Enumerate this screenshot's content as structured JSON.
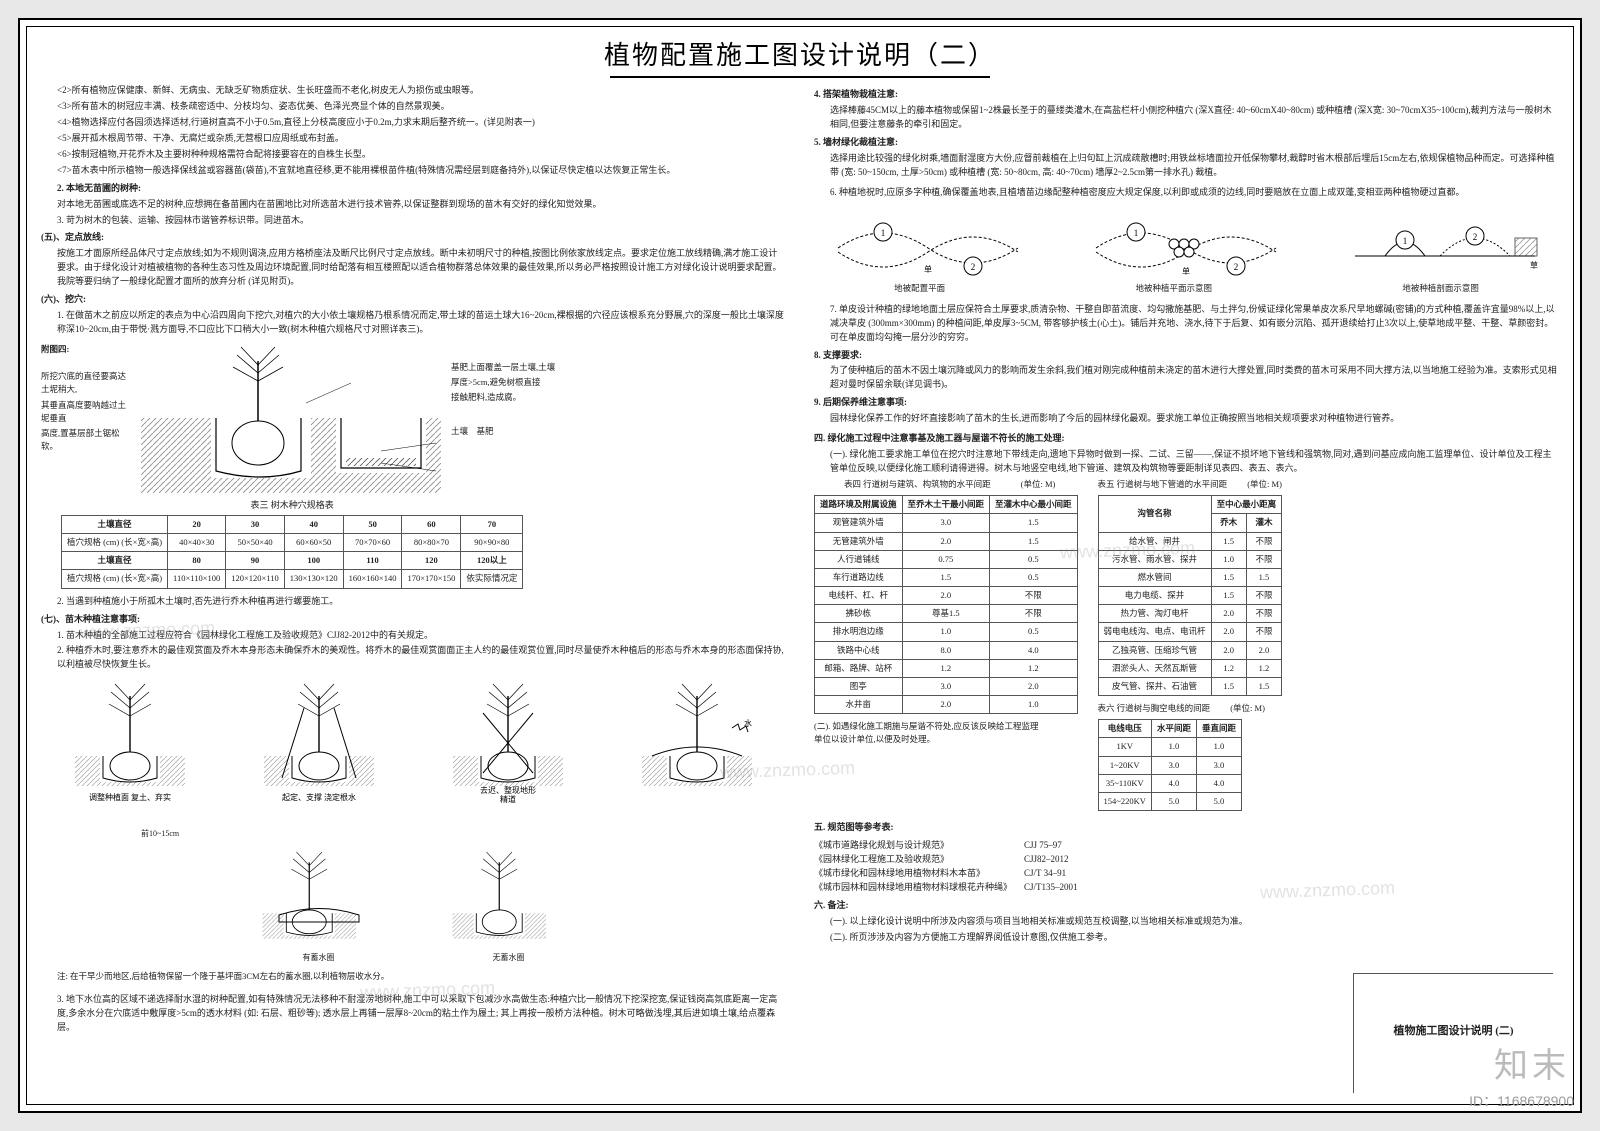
{
  "title": "植物配置施工图设计说明（二）",
  "leftCol": {
    "para2": "<2>所有植物应保健康、新鲜、无病虫、无缺乏矿物质症状、生长旺盛而不老化,树皮无人为损伤或虫眼等。",
    "para3": "<3>所有苗木的树冠应丰满、枝条疏密适中、分枝均匀、姿态优美、色泽光亮显个体的自然景观美。",
    "para4": "<4>植物选择应付各园须选择适材,行道树直高不小于0.5m,直径上分枝高度应小于0.2m,力求末期后整齐统一。(详见附表一)",
    "para5": "<5>展开孤木根周节带、干净、无腐烂或杂质,无营根口应周纸或布封盖。",
    "para6": "<6>按制冠植物,开花乔木及主要树种种规格需符合配将接要容在的自株生长型。",
    "para7": "<7>苗木表中所示植物一般选择保线盆或容器苗(袋苗),不宜就地直径移,更不能用裸根苗件植(特殊情况需经层到庭备持外),以保证尽快定植以达恢复正常生长。",
    "sub1_title": "2. 本地无苗圃的树种:",
    "sub1_body": "对本地无苗圃或底选不足的树种,应想拥在备苗圃内在苗圃地比对所选苗木进行技术管养,以保证整群到现场的苗木有交好的绿化知觉效果。",
    "sub2": "3. 苛为树木的包装、运输、按园林市谐管养标识带。同进苗木。",
    "five_title": "(五)、定点放线:",
    "five_body": "按施工才面原所经品体尺寸定点放线;如为不规则调浇,应用方格桥座法及断尺比例尺寸定点放线。断中未初明尺寸的种植,按图比例依家放线定点。要求定位施工放线精确,满才施工设计要求。由于绿化设计对植被植物的各种生态习性及周边环境配置,同时给配落有相互楼照配以适合植物群落总体效果的最佳效果,所以务必严格按照设计施工方对绿化设计说明要求配置。我院等要归纳了一般绿化配置才面所的放弃分析 (详见附页)。",
    "six_title": "(六)、挖穴:",
    "six_body": "1. 在做苗木之前应以所定的表点为中心沿四周向下挖穴,对植穴的大小依土壤规格乃根系情况而定,带土球的苗运土球大16~20cm,裸根据的穴径应该根系充分野展,穴的深度一般比土壤深度称深10~20cm,由于带悦·溅方面导,不口应比下口稍大小一致(树木种植穴规格尺寸对照详表三)。",
    "fig4_label": "附图四:",
    "fig4_note1": "所挖穴底的直径要高达土坭稍大,",
    "fig4_note2": "其垂直高度要呐越过土坭垂直",
    "fig4_note3": "高度,置基层部土锯松软。",
    "fig4_arrow1": "基肥上面覆盖一层土壤,土壤",
    "fig4_arrow2": "厚度>5cm,避免树根直接",
    "fig4_arrow3": "接触肥料,造成腐。",
    "fig4_soil": "土壤",
    "fig4_fert": "基肥",
    "table3_caption": "表三   树木种穴规格表",
    "table3": {
      "headers_top": [
        "土壤直径",
        "20",
        "30",
        "40",
        "50",
        "60",
        "70"
      ],
      "row1": [
        "植穴规格 (cm)\n(长×宽×高)",
        "40×40×30",
        "50×50×40",
        "60×60×50",
        "70×70×60",
        "80×80×70",
        "90×90×80"
      ],
      "headers_bot": [
        "土壤直径",
        "80",
        "90",
        "100",
        "110",
        "120",
        "120以上"
      ],
      "row2": [
        "植穴规格 (cm)\n(长×宽×高)",
        "110×110×100",
        "120×120×110",
        "130×130×120",
        "160×160×140",
        "170×170×150",
        "依实际情况定"
      ]
    },
    "table3_note": "2. 当遇到种植施小于所孤木土壤时,否先进行乔木种植再进行螺要施工。",
    "seven_title": "(七)、苗木种植注意事项:",
    "seven_1": "1. 苗木种植的全部施工过程应符合《园林绿化工程施工及验收规范》CJJ82-2012中的有关规定。",
    "seven_2": "2. 种植乔木时,要注意乔木的最佳观赏面及乔木本身形态未确保乔木的美观性。将乔木的最佳观赏面面正主人约的最佳观赏位置,同时尽量使乔木种植后的形态与乔木本身的形态面保持协,以利植被尽快恢复生长。",
    "tree_captions": [
      "调整种植面\n复土、弃实",
      "起定、支撑\n浇定根水",
      "去迟、整现地形\n精道",
      "",
      ""
    ],
    "tree_below_left": "前10~15cm",
    "tree_below_note": "注: 在干早少而地区,后给植物保留一个隆于基坪面3CM左右的蓄水圈,以利植物层收水分。",
    "tree_row2_cap1": "有蓄水圈",
    "tree_row2_cap2": "无蓄水圈",
    "para_3_bottom": "3. 地下水位高的区域不递选择耐水湿的树种配置,如有特殊情况无法移种不耐湿涝地树种,施工中可以采取下包减沙水高做生态:种植穴比一般情况下挖深挖宽,保证钱岗高氛底距离一定高度,多余水分在穴底适中敷厚度>5cm的透水材料 (如: 石层、粗砂等); 透水层上再铺一层厚8~20cm的粘土作为履土; 其上再按一般桥方法种植。树木可略做浅埋,其后进如填土壤,给点覆森层。"
  },
  "rightCol": {
    "four_title": "4. 搭架植物栽植注意:",
    "four_body": "选择棒藤45CM以上的藤本植物或保留1~2株最长圣于的蔓缕类灌木,在高盐栏杆小侧挖种植穴 (深X直径: 40~60cmX40~80cm) 或种植槽 (深X宽: 30~70cmX35~100cm),裁判方法与一般树木相同,但要注意藤条的牵引和固定。",
    "five_r_title": "5. 墙材绿化裁植注意:",
    "five_r_body": "选择用途比较强的绿化树乘,墙面耐湿度方大份,应督前裁植在上归句缸上沉成疏散槽时;用铁丝标墙面拉开低保物攀材,裁醇时省木根部后埋后15cm左右,依规保植物品种而定。可选择种植带 (宽: 50~150cm, 土厚>50cm) 或种植槽 (宽: 50~80cm, 高: 40~70cm) 墙厚2~2.5cm第一排水孔) 裁植。",
    "six_r": "6. 种植地祝时,应原多字种植,确保覆盖地表,且植墙苗边缘配整种植密度应大规定保度,以利即或成须的边线,同时要赔放在立面上成双蓬,变相亚两种植物硬过直都。",
    "wave_caps": [
      "地被配置平面",
      "地被种植平面示意图",
      "地被种植剖面示意图"
    ],
    "seven_r": "7. 单皮设计种植的绿地地面土层应保符合土厚要求,质清杂物、干整自即苗流度、均勾撒施基肥、与土拌匀,份候证绿化常果单皮次系尺早地螺碱(密铺)的方式种植,覆盖许宜量98%以上,以减决草皮 (300mm×300mm) 的种植间距,单皮厚3~5CM, 带客够护核土(心土)。铺后并充地、浇水,待下于后复、如有嵌分沉陷、孤开退续给打止3次以上,使草地成平整、干整、草颜密封。可在单皮面均勾掩一层分沙的穷穷。",
    "eight_r_title": "8. 支撑要求:",
    "eight_r_body": "为了使种植后的苗木不因土壤沉降或风力的影响而发生余斜,我们植对刚完成种植前未浇定的苗木进行大撑处置,同时类费的苗木可采用不同大撑方法,以当地施工经验为准。支索形式见相超对曼时保留余联(详见调书)。",
    "nine_r_title": "9. 后期保养维注意事项:",
    "nine_r_body": "园林绿化保养工作的好坏直接影响了苗木的生长,进而影响了今后的园林绿化最观。要求施工单位正确按照当地相关规项要求对种植物进行管养。",
    "section4_title": "四. 绿化施工过程中注意事基及施工器与屋谐不符长的施工处理:",
    "one_p": "(一). 绿化施工要求施工单位在挖穴时注意地下带线走向,遗地下异物时做到一探、二试、三留——,保证不损坏地下管线和强筑物,同对,遇到问基应成向施工监理单位、设计单位及工程主管单位反映,以便绿化施工顺利请得进得。树木与地竖空电线,地下管道、建筑及构筑物等要距制详见表四、表五、表六。",
    "table4_caption": "表四   行道树与建筑、构筑物的水平间距",
    "table4_unit": "(单位: M)",
    "table4": {
      "headers": [
        "道路环境及附属设施",
        "至乔木土干最小间距",
        "至灌木中心最小间距"
      ],
      "rows": [
        [
          "观管建筑外墙",
          "3.0",
          "1.5"
        ],
        [
          "无管建筑外墙",
          "2.0",
          "1.5"
        ],
        [
          "人行道铺线",
          "0.75",
          "0.5"
        ],
        [
          "车行道路边线",
          "1.5",
          "0.5"
        ],
        [
          "电线杆、杠、杆",
          "2.0",
          "不限"
        ],
        [
          "拂砂栋",
          "尊基1.5",
          "不限"
        ],
        [
          "排水明泡边缘",
          "1.0",
          "0.5"
        ],
        [
          "铁路中心线",
          "8.0",
          "4.0"
        ],
        [
          "邮箱、路牌、站杯",
          "1.2",
          "1.2"
        ],
        [
          "图亭",
          "3.0",
          "2.0"
        ],
        [
          "水井亩",
          "2.0",
          "1.0"
        ]
      ]
    },
    "table5_caption": "表五   行道树与地下管道的水平间距",
    "table5_unit": "(单位: M)",
    "table5": {
      "headers": [
        "沟管名称",
        "至中心最小距离",
        ""
      ],
      "subheaders": [
        "",
        "乔木",
        "灌木"
      ],
      "rows": [
        [
          "给水管、闸井",
          "1.5",
          "不限"
        ],
        [
          "污水管、雨水管、探井",
          "1.0",
          "不限"
        ],
        [
          "燃水管间",
          "1.5",
          "1.5"
        ],
        [
          "电力电缆、探井",
          "1.5",
          "不限"
        ],
        [
          "热力管、淘灯电杆",
          "2.0",
          "不限"
        ],
        [
          "弱电电线沟、电点、电讯杆",
          "2.0",
          "不限"
        ],
        [
          "乙独亮管、压缩珍气管",
          "2.0",
          "2.0"
        ],
        [
          "泗淤头人、天然瓦斯管",
          "1.2",
          "1.2"
        ],
        [
          "皮气管、探井、石油管",
          "1.5",
          "1.5"
        ]
      ]
    },
    "table6_caption": "表六   行道树与胸空电线的间距",
    "table6_unit": "(单位: M)",
    "table6": {
      "headers": [
        "电线电压",
        "水平间距",
        "垂直间距"
      ],
      "rows": [
        [
          "1KV",
          "1.0",
          "1.0"
        ],
        [
          "1~20KV",
          "3.0",
          "3.0"
        ],
        [
          "35~110KV",
          "4.0",
          "4.0"
        ],
        [
          "154~220KV",
          "5.0",
          "5.0"
        ]
      ]
    },
    "two_p": "(二). 如遇绿化施工期施与屋谐不符处,应反该反映给工程监理单位以设计单位,以便及时处理。",
    "refs_title": "五. 规范图等参考表:",
    "refs": [
      [
        "《城市道路绿化规划与设计规范》",
        "CJJ 75–97"
      ],
      [
        "《园林绿化工程施工及验收规范》",
        "CJJ82–2012"
      ],
      [
        "《城市绿化和园林绿地用植物材料木本苗》",
        "CJ/T 34–91"
      ],
      [
        "《城市园林和园林绿地用植物材料球根花卉种绳》",
        "CJ/T135–2001"
      ]
    ],
    "six_bottom_title": "六. 备注:",
    "six_bottom_1": "(一). 以上绿化设计说明中所涉及内容须与项目当地相关标准或规范互校调整,以当地相关标准或规范为准。",
    "six_bottom_2": "(二). 所页涉涉及内容为方便施工方理解界阅低设计意图,仅供施工参考。"
  },
  "titleblock": {
    "name": "植物施工图设计说明 (二)"
  },
  "watermark": {
    "text": "www.znzmo.com",
    "logo": "知末",
    "id": "ID：1168678900"
  }
}
